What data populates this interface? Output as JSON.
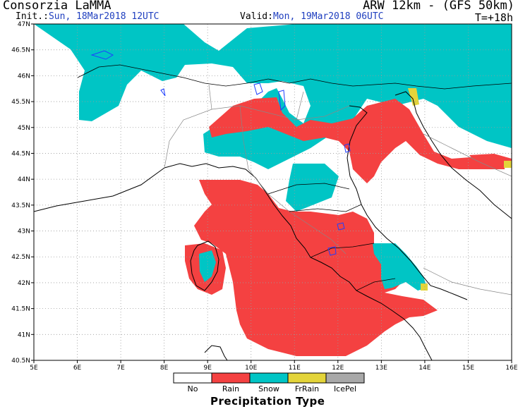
{
  "header": {
    "source": "Consorzia LaMMA",
    "model": "ARW 12km - (GFS 50km)",
    "init_label": "Init.:",
    "init_value": "Sun, 18Mar2018 12UTC",
    "valid_label": "Valid:",
    "valid_value": "Mon, 19Mar2018 06UTC",
    "time_step": "T=+18h"
  },
  "axes": {
    "lat_labels": [
      "47N",
      "46.5N",
      "46N",
      "45.5N",
      "45N",
      "44.5N",
      "44N",
      "43.5N",
      "43N",
      "42.5N",
      "42N",
      "41.5N",
      "41N",
      "40.5N"
    ],
    "lon_labels": [
      "5E",
      "6E",
      "7E",
      "8E",
      "9E",
      "10E",
      "11E",
      "12E",
      "13E",
      "14E",
      "15E",
      "16E"
    ],
    "lat_range": [
      40.5,
      47.0
    ],
    "lon_range": [
      5.0,
      16.0
    ]
  },
  "legend": {
    "title": "Precipitation Type",
    "items": [
      {
        "label": "No",
        "color": "#ffffff"
      },
      {
        "label": "Rain",
        "color": "#f44141"
      },
      {
        "label": "Snow",
        "color": "#00c5c5"
      },
      {
        "label": "FrRain",
        "color": "#e3d43a"
      },
      {
        "label": "IcePel",
        "color": "#a8a8a8"
      }
    ]
  },
  "colors": {
    "rain": "#f44141",
    "snow": "#00c5c5",
    "frrain": "#e3d43a",
    "grid": "#9a9a9a",
    "coast": "#000000",
    "lakes": "#1f3fff"
  }
}
